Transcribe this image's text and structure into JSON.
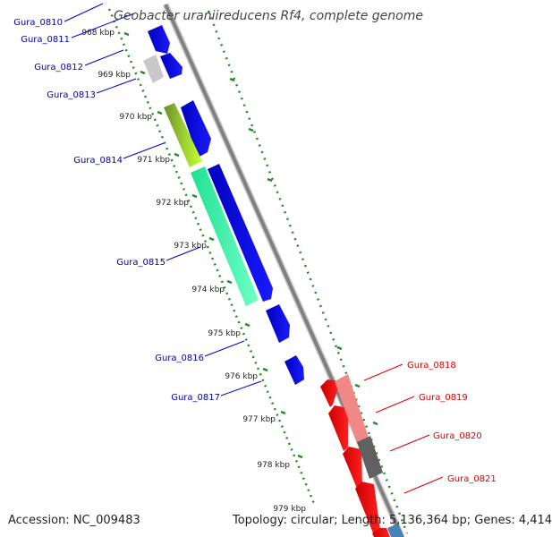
{
  "title": "Geobacter uraniireducens Rf4, complete genome",
  "accession": "Accession: NC_009483",
  "topology": "Topology: circular; Length: 5,136,364 bp; Genes: 4,414",
  "colors": {
    "forward_gene": "#0000ee",
    "reverse_gene": "#ff0000",
    "backbone": "#808080",
    "tick": "#228b22",
    "left_label": "#0000aa",
    "right_label": "#dd0000"
  },
  "kbp_ticks": [
    "968 kbp",
    "969 kbp",
    "970 kbp",
    "971 kbp",
    "972 kbp",
    "973 kbp",
    "974 kbp",
    "975 kbp",
    "976 kbp",
    "977 kbp",
    "978 kbp",
    "979 kbp"
  ],
  "left_gene_labels": [
    "Gura_0810",
    "Gura_0811",
    "Gura_0812",
    "Gura_0813",
    "Gura_0814",
    "Gura_0815",
    "Gura_0816",
    "Gura_0817"
  ],
  "right_gene_labels": [
    "Gura_0818",
    "Gura_0819",
    "Gura_0820",
    "Gura_0821"
  ],
  "features": [
    {
      "kind": "cds",
      "strand": "+",
      "color": "#0000ee"
    },
    {
      "kind": "cds",
      "strand": "+",
      "color": "#0000ee"
    },
    {
      "kind": "cds",
      "strand": "+",
      "color": "#0000ee"
    },
    {
      "kind": "cds",
      "strand": "+",
      "color": "#0000ee"
    },
    {
      "kind": "cds",
      "strand": "+",
      "color": "#0000ee"
    },
    {
      "kind": "cds",
      "strand": "+",
      "color": "#0000ee"
    },
    {
      "kind": "cds",
      "strand": "+",
      "color": "#0000ee"
    },
    {
      "kind": "cds",
      "strand": "-",
      "color": "#ff0000"
    },
    {
      "kind": "cds",
      "strand": "-",
      "color": "#ff0000"
    },
    {
      "kind": "cds",
      "strand": "-",
      "color": "#ff0000"
    },
    {
      "kind": "cds",
      "strand": "-",
      "color": "#ff0000"
    },
    {
      "kind": "cds",
      "strand": "-",
      "color": "#ff0000"
    },
    {
      "kind": "cog",
      "strand": "+",
      "color": "#c0c0c0"
    },
    {
      "kind": "cog",
      "strand": "+",
      "color": "#9acd32"
    },
    {
      "kind": "cog",
      "strand": "+",
      "color": "#40f0a0"
    },
    {
      "kind": "cog",
      "strand": "-",
      "color": "#f08080"
    },
    {
      "kind": "cog",
      "strand": "-",
      "color": "#606060"
    },
    {
      "kind": "cog",
      "strand": "-",
      "color": "#4682b4"
    }
  ]
}
